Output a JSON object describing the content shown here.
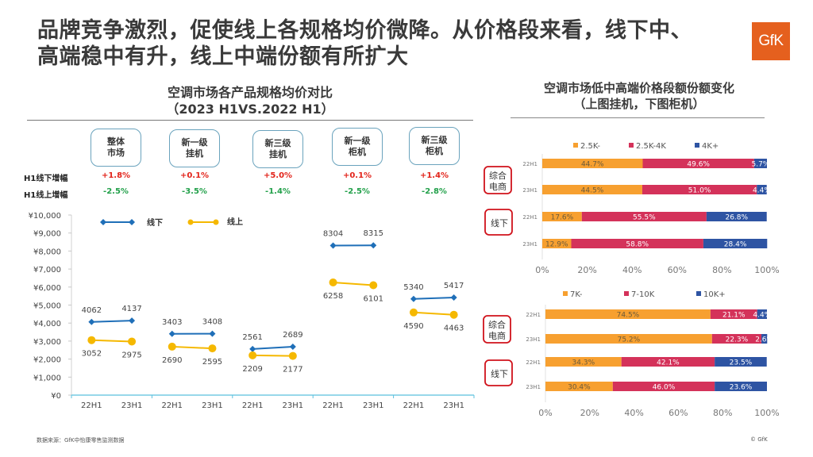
{
  "headline": {
    "line1": "品牌竞争激烈，促使线上各规格均价微降。从价格段来看，线下中、",
    "line2": "高端稳中有升，线上中端份额有所扩大"
  },
  "logo": {
    "text": "GfK",
    "color": "#e5601e"
  },
  "left_panel": {
    "title_line1": "空调市场各产品规格均价对比",
    "title_line2": "（2023 H1VS.2022 H1）",
    "categories": [
      {
        "line1": "整体",
        "line2": "市场",
        "offline_growth": "+1.8%",
        "online_growth": "-2.5%"
      },
      {
        "line1": "新一级",
        "line2": "挂机",
        "offline_growth": "+0.1%",
        "online_growth": "-3.5%"
      },
      {
        "line1": "新三级",
        "line2": "挂机",
        "offline_growth": "+5.0%",
        "online_growth": "-1.4%"
      },
      {
        "line1": "新一级",
        "line2": "柜机",
        "offline_growth": "+0.1%",
        "online_growth": "-2.5%"
      },
      {
        "line1": "新三级",
        "line2": "柜机",
        "offline_growth": "+1.4%",
        "online_growth": "-2.8%"
      }
    ],
    "row_labels": {
      "offline": "H1线下增幅",
      "online": "H1线上增幅"
    },
    "colors": {
      "up": "#e2231a",
      "down": "#22a04a"
    }
  },
  "right_panel": {
    "title_line1": "空调市场低中高端价格段额份额变化",
    "title_line2": "（上图挂机，下图柜机）",
    "channel_labels": {
      "ecommerce_line1": "综合",
      "ecommerce_line2": "电商",
      "offline": "线下"
    }
  },
  "chart_data": [
    {
      "type": "line",
      "title": "空调市场各产品规格均价对比 (2023 H1VS.2022 H1)",
      "xlabel": "",
      "ylabel": "",
      "ylim": [
        0,
        10000
      ],
      "yticks": [
        "¥0",
        "¥1,000",
        "¥2,000",
        "¥3,000",
        "¥4,000",
        "¥5,000",
        "¥6,000",
        "¥7,000",
        "¥8,000",
        "¥9,000",
        "¥10,000"
      ],
      "groups": [
        "整体市场",
        "新一级挂机",
        "新三级挂机",
        "新一级柜机",
        "新三级柜机"
      ],
      "x": [
        "22H1",
        "23H1"
      ],
      "legend_position": "top-left",
      "grid": false,
      "series": [
        {
          "name": "线下",
          "color": "#1f6fb8",
          "marker": "diamond",
          "values": [
            [
              4062,
              4137
            ],
            [
              3403,
              3408
            ],
            [
              2561,
              2689
            ],
            [
              8304,
              8315
            ],
            [
              5340,
              5417
            ]
          ]
        },
        {
          "name": "线上",
          "color": "#f5b800",
          "marker": "circle",
          "values": [
            [
              3052,
              2975
            ],
            [
              2690,
              2595
            ],
            [
              2209,
              2177
            ],
            [
              6258,
              6101
            ],
            [
              4590,
              4463
            ]
          ]
        }
      ]
    },
    {
      "type": "bar",
      "stacked": true,
      "orientation": "horizontal",
      "subtitle": "挂机",
      "categories": [
        "综合电商 22H1",
        "综合电商 23H1",
        "线下 22H1",
        "线下 23H1"
      ],
      "row_labels": [
        "22H1",
        "23H1",
        "22H1",
        "23H1"
      ],
      "xlim": [
        0,
        100
      ],
      "xticks": [
        "0%",
        "20%",
        "40%",
        "60%",
        "80%",
        "100%"
      ],
      "legend_position": "top",
      "series": [
        {
          "name": "2.5K-",
          "color": "#f7a030",
          "label_color": "#6b5a3a",
          "values": [
            44.7,
            44.5,
            17.6,
            12.9
          ],
          "labels": [
            "44.7%",
            "44.5%",
            "17.6%",
            "12.9%"
          ]
        },
        {
          "name": "2.5K-4K",
          "color": "#d4325a",
          "label_color": "#ffffff",
          "values": [
            49.6,
            51.0,
            55.5,
            58.8
          ],
          "labels": [
            "49.6%",
            "51.0%",
            "55.5%",
            "58.8%"
          ]
        },
        {
          "name": "4K+",
          "color": "#2e54a3",
          "label_color": "#ffffff",
          "values": [
            5.7,
            4.4,
            26.8,
            28.4
          ],
          "labels": [
            "5.7%",
            "4.4%",
            "26.8%",
            "28.4%"
          ]
        }
      ]
    },
    {
      "type": "bar",
      "stacked": true,
      "orientation": "horizontal",
      "subtitle": "柜机",
      "categories": [
        "综合电商 22H1",
        "综合电商 23H1",
        "线下 22H1",
        "线下 23H1"
      ],
      "row_labels": [
        "22H1",
        "23H1",
        "22H1",
        "23H1"
      ],
      "xlim": [
        0,
        100
      ],
      "xticks": [
        "0%",
        "20%",
        "40%",
        "60%",
        "80%",
        "100%"
      ],
      "legend_position": "top",
      "series": [
        {
          "name": "7K-",
          "color": "#f7a030",
          "label_color": "#6b5a3a",
          "values": [
            74.5,
            75.2,
            34.3,
            30.4
          ],
          "labels": [
            "74.5%",
            "75.2%",
            "34.3%",
            "30.4%"
          ]
        },
        {
          "name": "7-10K",
          "color": "#d4325a",
          "label_color": "#ffffff",
          "values": [
            21.1,
            22.3,
            42.1,
            46.0
          ],
          "labels": [
            "21.1%",
            "22.3%",
            "42.1%",
            "46.0%"
          ]
        },
        {
          "name": "10K+",
          "color": "#2e54a3",
          "label_color": "#ffffff",
          "values": [
            4.4,
            2.6,
            23.5,
            23.6
          ],
          "labels": [
            "4.4%",
            "2.6%",
            "23.5%",
            "23.6%"
          ]
        }
      ]
    }
  ],
  "footer": {
    "source": "数据来源：GfK中怡康零售监测数据",
    "copyright": "© GfK"
  }
}
